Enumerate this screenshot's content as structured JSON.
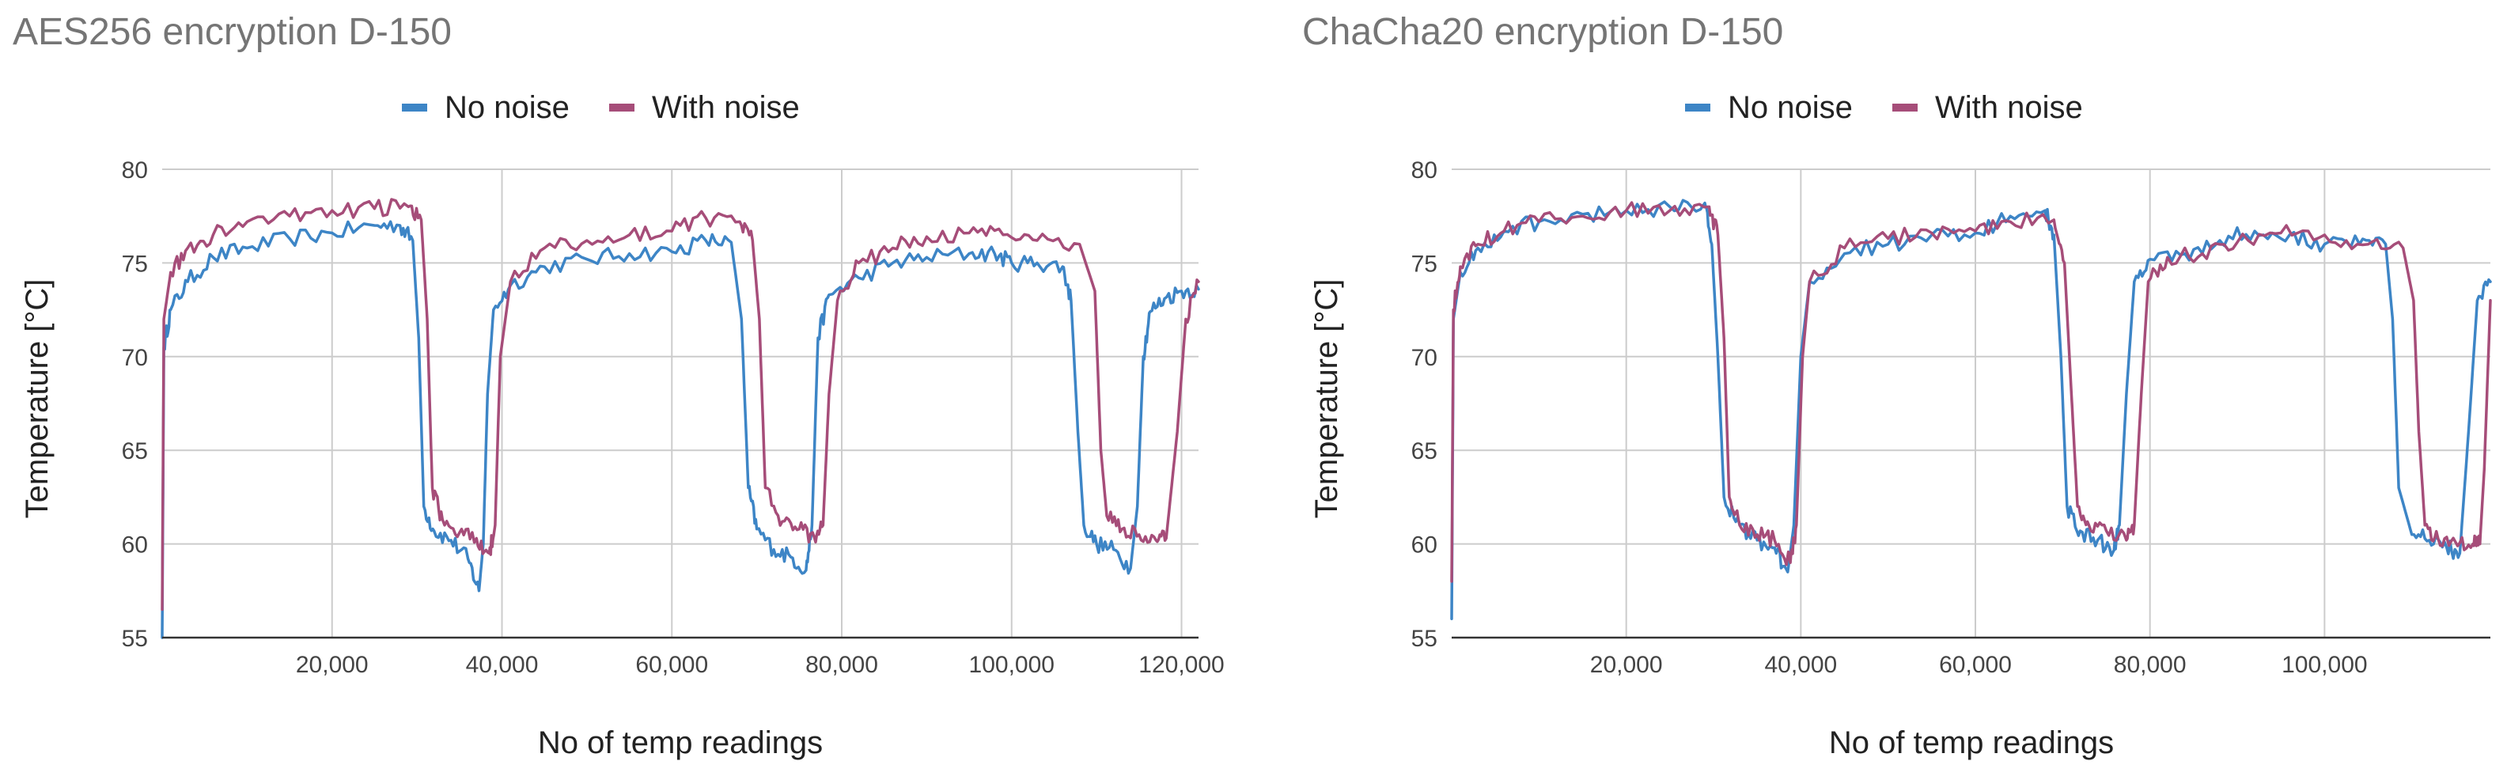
{
  "colors": {
    "no_noise": "#3d85c6",
    "with_noise": "#a64d79"
  },
  "chart_data": [
    {
      "type": "line",
      "title": "AES256 encryption D-150",
      "xlabel": "No of temp readings",
      "ylabel": "Temperature [°C]",
      "xlim": [
        0,
        122000
      ],
      "ylim": [
        55,
        80
      ],
      "xticks": [
        20000,
        40000,
        60000,
        80000,
        100000,
        120000
      ],
      "xtick_labels": [
        "20,000",
        "40,000",
        "60,000",
        "80,000",
        "100,000",
        "120,000"
      ],
      "yticks": [
        55,
        60,
        65,
        70,
        75,
        80
      ],
      "ytick_labels": [
        "55",
        "60",
        "65",
        "70",
        "75",
        "80"
      ],
      "grid": true,
      "legend_position": "top-center",
      "series": [
        {
          "name": "No noise",
          "color": "#3d85c6",
          "x": [
            0,
            200,
            1000,
            3000,
            6000,
            10000,
            15000,
            20000,
            25000,
            28000,
            29500,
            30200,
            30800,
            32000,
            34000,
            36000,
            37300,
            37800,
            38300,
            39000,
            41000,
            45000,
            50000,
            55000,
            60000,
            64000,
            67000,
            68200,
            69000,
            70000,
            72000,
            74000,
            75800,
            76500,
            77200,
            78500,
            82000,
            86000,
            90000,
            95000,
            98000,
            100000,
            103000,
            106000,
            107000,
            107800,
            108500,
            110000,
            112000,
            114000,
            114800,
            115500,
            116300,
            118000,
            120000,
            122000
          ],
          "y": [
            55,
            70.5,
            72.5,
            74,
            75.3,
            75.8,
            76.3,
            76.6,
            77,
            77,
            76.2,
            71,
            62,
            60.7,
            60.2,
            59.2,
            57.5,
            60,
            68,
            72.5,
            73.8,
            74.8,
            75.2,
            75.5,
            75.6,
            76.2,
            76.1,
            72,
            63,
            60.8,
            59.7,
            59.3,
            58.6,
            61,
            71,
            73.3,
            74.2,
            75,
            75.3,
            75.5,
            75.5,
            75,
            75,
            74.8,
            73,
            66,
            61,
            60,
            59.7,
            58.7,
            62,
            70,
            72.4,
            73.1,
            73.5,
            73.6
          ],
          "values": [
            55,
            70.5,
            72.5,
            74,
            75.3,
            75.8,
            76.3,
            76.6,
            77,
            77,
            76.2,
            71,
            62,
            60.7,
            60.2,
            59.2,
            57.5,
            60,
            68,
            72.5,
            73.8,
            74.8,
            75.2,
            75.5,
            75.6,
            76.2,
            76.1,
            72,
            63,
            60.8,
            59.7,
            59.3,
            58.6,
            61,
            71,
            73.3,
            74.2,
            75,
            75.3,
            75.5,
            75.5,
            75,
            75,
            74.8,
            73,
            66,
            61,
            60,
            59.7,
            58.7,
            62,
            70,
            72.4,
            73.1,
            73.5,
            73.6
          ]
        },
        {
          "name": "With noise",
          "color": "#a64d79",
          "x": [
            0,
            200,
            1000,
            3000,
            6000,
            10000,
            15000,
            20000,
            25000,
            29000,
            30500,
            31200,
            31800,
            33000,
            35000,
            37000,
            38500,
            39200,
            39800,
            41000,
            45000,
            50000,
            55000,
            60000,
            64000,
            68000,
            69500,
            70300,
            71000,
            73000,
            75000,
            76800,
            77800,
            78500,
            79500,
            82000,
            86000,
            90000,
            95000,
            99000,
            103000,
            108000,
            109800,
            110500,
            111200,
            113000,
            115000,
            117000,
            118200,
            119500,
            120500,
            122000
          ],
          "y": [
            56.5,
            72,
            74.5,
            75.8,
            76.5,
            77.2,
            77.5,
            77.8,
            77.9,
            78,
            77.3,
            72,
            63,
            61.3,
            60.6,
            60.3,
            59.5,
            61,
            70,
            74,
            75.8,
            76.2,
            76.5,
            76.7,
            77.4,
            77.2,
            76.2,
            72,
            63,
            61.2,
            60.8,
            60.3,
            61,
            68,
            73,
            75,
            75.8,
            76.4,
            76.6,
            76.5,
            76.2,
            76,
            73.5,
            65,
            61.5,
            60.8,
            60.5,
            60.2,
            60.3,
            66,
            72,
            74
          ]
        }
      ]
    },
    {
      "type": "line",
      "title": "ChaCha20 encryption D-150",
      "xlabel": "No of temp readings",
      "ylabel": "Temperature [°C]",
      "xlim": [
        0,
        119000
      ],
      "ylim": [
        55,
        80
      ],
      "xticks": [
        20000,
        40000,
        60000,
        80000,
        100000
      ],
      "xtick_labels": [
        "20,000",
        "40,000",
        "60,000",
        "80,000",
        "100,000"
      ],
      "yticks": [
        55,
        60,
        65,
        70,
        75,
        80
      ],
      "ytick_labels": [
        "55",
        "60",
        "65",
        "70",
        "75",
        "80"
      ],
      "grid": true,
      "legend_position": "top-center",
      "series": [
        {
          "name": "No noise",
          "color": "#3d85c6",
          "x": [
            0,
            200,
            1000,
            3000,
            6000,
            10000,
            15000,
            20000,
            25000,
            29000,
            29800,
            30500,
            31200,
            33000,
            35000,
            37000,
            38500,
            39200,
            40000,
            41000,
            45000,
            50000,
            55000,
            60000,
            64000,
            68000,
            69000,
            69800,
            70500,
            72000,
            74000,
            75800,
            76500,
            77300,
            78200,
            80000,
            84000,
            88000,
            92000,
            96000,
            100000,
            104000,
            107000,
            107800,
            108500,
            110000,
            112000,
            114000,
            115500,
            116500,
            117500,
            119000
          ],
          "y": [
            56,
            72,
            74.5,
            75.8,
            76.7,
            77.2,
            77.6,
            77.8,
            78,
            78.2,
            76,
            70,
            62.5,
            61,
            60.2,
            59.8,
            58.5,
            61,
            70,
            74,
            75.5,
            76,
            76.5,
            76.6,
            77.5,
            77.8,
            76.5,
            70,
            62,
            60.7,
            60.2,
            59.6,
            61,
            68,
            74,
            75.2,
            75.5,
            76.2,
            76.7,
            76.5,
            76,
            76,
            76,
            72,
            63,
            60.5,
            60.2,
            59.8,
            59.5,
            66,
            73,
            74
          ]
        },
        {
          "name": "With noise",
          "color": "#a64d79",
          "x": [
            0,
            200,
            1000,
            3000,
            6000,
            10000,
            15000,
            20000,
            25000,
            29500,
            30500,
            31200,
            31800,
            33000,
            35000,
            37000,
            38800,
            39500,
            40200,
            41000,
            45000,
            50000,
            55000,
            60000,
            64000,
            69000,
            70200,
            71000,
            71700,
            73000,
            75000,
            77300,
            78200,
            79000,
            79800,
            82000,
            86000,
            90000,
            95000,
            100000,
            105000,
            109000,
            110200,
            110800,
            111500,
            113000,
            115000,
            117000,
            117800,
            118300,
            119000
          ],
          "y": [
            58,
            72.5,
            74.8,
            76,
            76.7,
            77.2,
            77.5,
            77.8,
            77.8,
            78,
            76.5,
            71,
            62.5,
            61,
            60.5,
            60.2,
            59,
            61,
            70,
            74,
            75.8,
            76.3,
            76.6,
            76.7,
            77.2,
            77.3,
            75,
            68,
            62,
            61,
            60.7,
            60.2,
            61,
            68,
            74,
            75.3,
            75.5,
            76.1,
            76.6,
            76.5,
            76,
            75.8,
            73,
            66,
            61,
            60.3,
            60.1,
            60,
            60,
            64,
            73
          ]
        }
      ]
    }
  ]
}
